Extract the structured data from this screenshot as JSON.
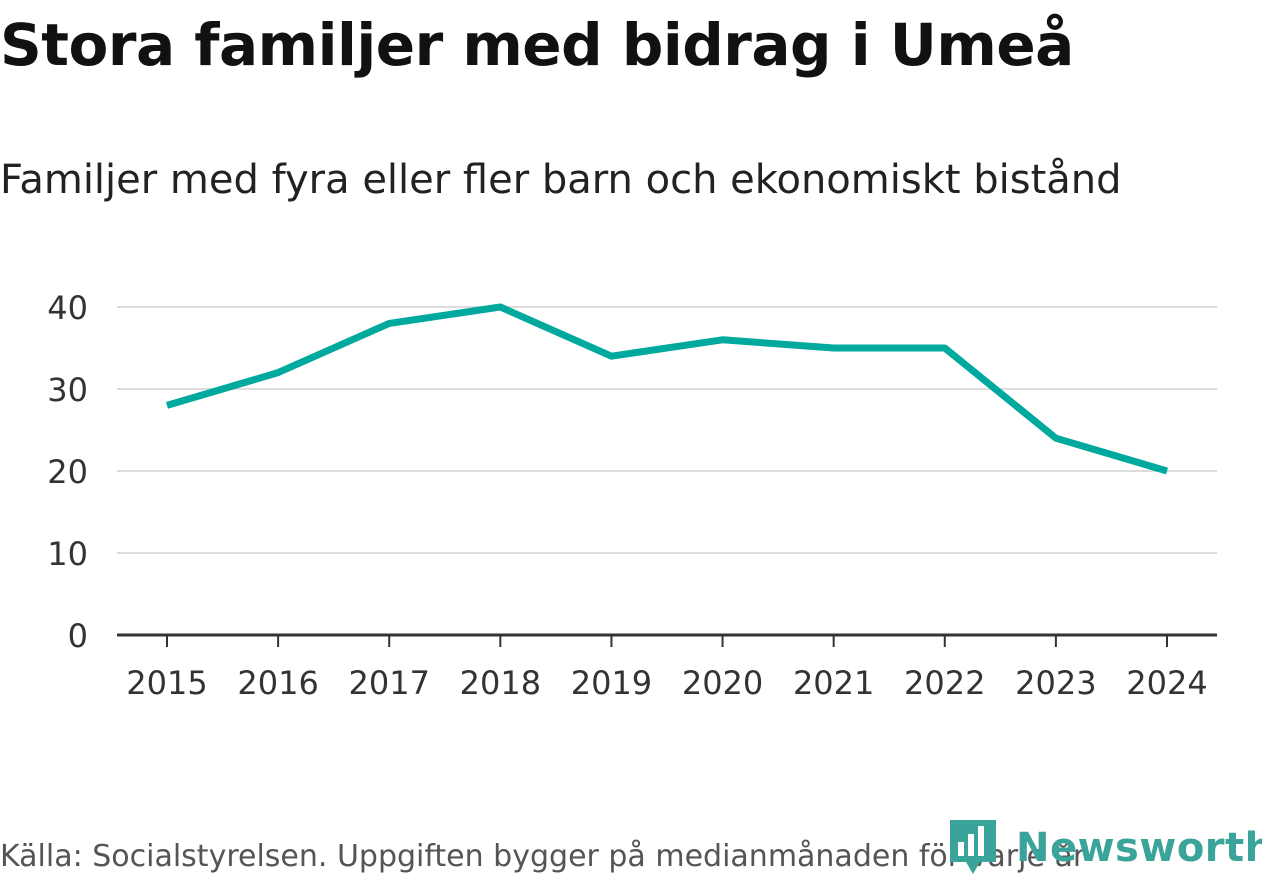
{
  "title": "Stora familjer med bidrag i Umeå",
  "subtitle": "Familjer med fyra eller fler barn och ekonomiskt bistånd",
  "source": "Källa: Socialstyrelsen. Uppgiften bygger på medianmånaden för varje år",
  "brand": {
    "name": "Newsworthy",
    "icon": "newsworthy-logo-icon"
  },
  "colors": {
    "line": "#00a99d",
    "grid": "#dddddd",
    "axis": "#333333",
    "text": "#333333",
    "brand": "#3aa39a"
  },
  "chart_data": {
    "type": "line",
    "title": "Stora familjer med bidrag i Umeå",
    "subtitle": "Familjer med fyra eller fler barn och ekonomiskt bistånd",
    "xlabel": "",
    "ylabel": "",
    "categories": [
      "2015",
      "2016",
      "2017",
      "2018",
      "2019",
      "2020",
      "2021",
      "2022",
      "2023",
      "2024"
    ],
    "series": [
      {
        "name": "Familjer med fyra eller fler barn och ekonomiskt bistånd",
        "values": [
          28,
          32,
          38,
          40,
          34,
          36,
          35,
          35,
          24,
          20
        ]
      }
    ],
    "ylim": [
      0,
      40
    ],
    "yticks": [
      0,
      10,
      20,
      30,
      40
    ],
    "grid": true,
    "legend": "none"
  }
}
